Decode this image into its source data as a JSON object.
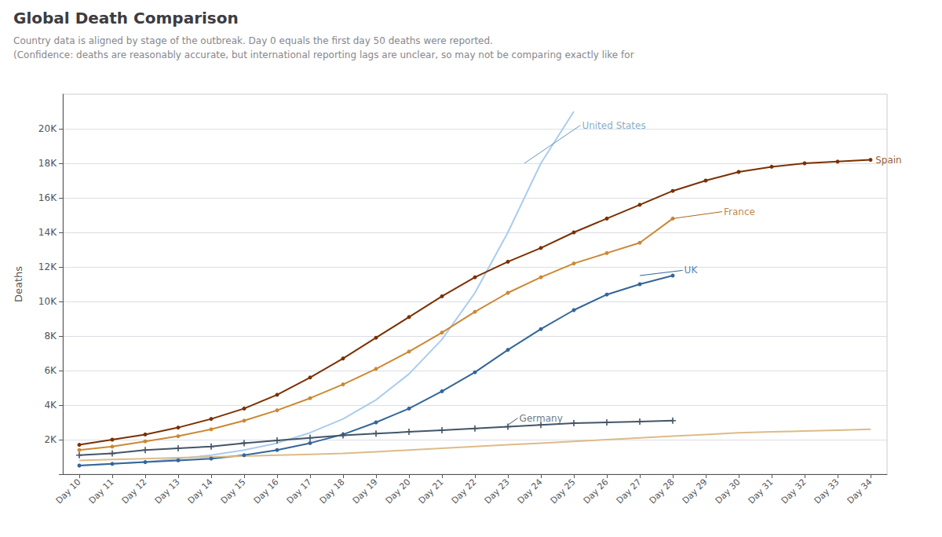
{
  "chart_data": {
    "type": "line",
    "title": "Global Death Comparison",
    "subtitle": [
      "Country data is aligned by stage of the outbreak. Day 0 equals the first day 50 deaths were reported.",
      "(Confidence: deaths are reasonably accurate, but international reporting lags are unclear, so may not be comparing exactly like for"
    ],
    "ylabel": "Deaths",
    "x": [
      10,
      11,
      12,
      13,
      14,
      15,
      16,
      17,
      18,
      19,
      20,
      21,
      22,
      23,
      24,
      25,
      26,
      27,
      28,
      29,
      30,
      31,
      32,
      33,
      34
    ],
    "series": [
      {
        "name": "United States",
        "color": "#aaccee",
        "marker": null,
        "values": [
          500,
          600,
          700,
          900,
          1100,
          1400,
          1800,
          2400,
          3200,
          4300,
          5800,
          7800,
          10500,
          14000,
          18000,
          21000,
          null,
          null,
          null,
          null,
          null,
          null,
          null,
          null,
          null
        ]
      },
      {
        "name": "Spain",
        "color": "#7B3000",
        "marker": "circle",
        "values": [
          1700,
          2000,
          2300,
          2700,
          3200,
          3800,
          4600,
          5600,
          6700,
          7900,
          9100,
          10300,
          11400,
          12300,
          13100,
          14000,
          14800,
          15600,
          16400,
          17000,
          17500,
          17800,
          18000,
          18100,
          18200
        ]
      },
      {
        "name": "France",
        "color": "#cc8833",
        "marker": "circle",
        "values": [
          1400,
          1600,
          1900,
          2200,
          2600,
          3100,
          3700,
          4400,
          5200,
          6100,
          7100,
          8200,
          9400,
          10500,
          11400,
          12200,
          12800,
          13400,
          14800,
          null,
          null,
          null,
          null,
          null,
          null
        ]
      },
      {
        "name": "UK",
        "color": "#336699",
        "marker": "circle",
        "values": [
          500,
          600,
          700,
          800,
          900,
          1100,
          1400,
          1800,
          2300,
          3000,
          3800,
          4800,
          5900,
          7200,
          8400,
          9500,
          10400,
          11000,
          11500,
          null,
          null,
          null,
          null,
          null,
          null
        ]
      },
      {
        "name": "Germany",
        "color": "#445566",
        "marker": "plus",
        "values": [
          1100,
          1200,
          1400,
          1500,
          1600,
          1800,
          1950,
          2100,
          2250,
          2350,
          2450,
          2550,
          2650,
          2750,
          2850,
          2950,
          3000,
          3050,
          3100,
          null,
          null,
          null,
          null,
          null,
          null
        ]
      },
      {
        "color": "#ddbb88",
        "marker": null,
        "values": [
          800,
          850,
          900,
          950,
          1000,
          1050,
          1100,
          1150,
          1200,
          1300,
          1400,
          1500,
          1600,
          1700,
          1800,
          1900,
          2000,
          2100,
          2200,
          2300,
          2400,
          2450,
          2500,
          2550,
          2600
        ]
      }
    ],
    "annotations": [
      {
        "text": "United States",
        "x": 25.2,
        "y": 20200,
        "arrow_x": 23.5,
        "arrow_y": 18000,
        "color": "#6699bb"
      },
      {
        "text": "Spain",
        "x": 34.1,
        "y": 18200,
        "color": "#7B3000"
      },
      {
        "text": "France",
        "x": 29.5,
        "y": 15200,
        "arrow_x": 28,
        "arrow_y": 14800,
        "color": "#aa6622"
      },
      {
        "text": "UK",
        "x": 28.3,
        "y": 11800,
        "arrow_x": 27,
        "arrow_y": 11500,
        "color": "#336699"
      },
      {
        "text": "Germany",
        "x": 23.3,
        "y": 3250,
        "arrow_x": 23,
        "arrow_y": 2850,
        "color": "#445566"
      }
    ],
    "xlim": [
      9.5,
      34.5
    ],
    "xticks": [
      {
        "value": 10,
        "label": "Day 10"
      },
      {
        "value": 11,
        "label": "Day 11"
      },
      {
        "value": 12,
        "label": "Day 12"
      },
      {
        "value": 13,
        "label": "Day 13"
      },
      {
        "value": 14,
        "label": "Day 14"
      },
      {
        "value": 15,
        "label": "Day 15"
      },
      {
        "value": 16,
        "label": "Day 16"
      },
      {
        "value": 17,
        "label": "Day 17"
      },
      {
        "value": 18,
        "label": "Day 18"
      },
      {
        "value": 19,
        "label": "Day 19"
      },
      {
        "value": 20,
        "label": "Day 20"
      },
      {
        "value": 21,
        "label": "Day 21"
      },
      {
        "value": 22,
        "label": "Day 22"
      },
      {
        "value": 23,
        "label": "Day 23"
      },
      {
        "value": 24,
        "label": "Day 24"
      },
      {
        "value": 25,
        "label": "Day 25"
      },
      {
        "value": 26,
        "label": "Day 26"
      },
      {
        "value": 27,
        "label": "Day 27"
      },
      {
        "value": 28,
        "label": "Day 28"
      },
      {
        "value": 29,
        "label": "Day 29"
      },
      {
        "value": 30,
        "label": "Day 30"
      },
      {
        "value": 31,
        "label": "Day 31"
      },
      {
        "value": 32,
        "label": "Day 32"
      },
      {
        "value": 33,
        "label": "Day 33"
      },
      {
        "value": 34,
        "label": "Day 34"
      }
    ],
    "ylim": [
      0,
      22000
    ],
    "yticks": [
      {
        "value": 0,
        "label": ""
      },
      {
        "value": 2000,
        "label": "2K"
      },
      {
        "value": 4000,
        "label": "4K"
      },
      {
        "value": 6000,
        "label": "6K"
      },
      {
        "value": 8000,
        "label": "8K"
      },
      {
        "value": 10000,
        "label": "10K"
      },
      {
        "value": 12000,
        "label": "12K"
      },
      {
        "value": 14000,
        "label": "14K"
      },
      {
        "value": 16000,
        "label": "16K"
      },
      {
        "value": 18000,
        "label": "18K"
      },
      {
        "value": 20000,
        "label": "20K"
      }
    ],
    "grid": true
  }
}
